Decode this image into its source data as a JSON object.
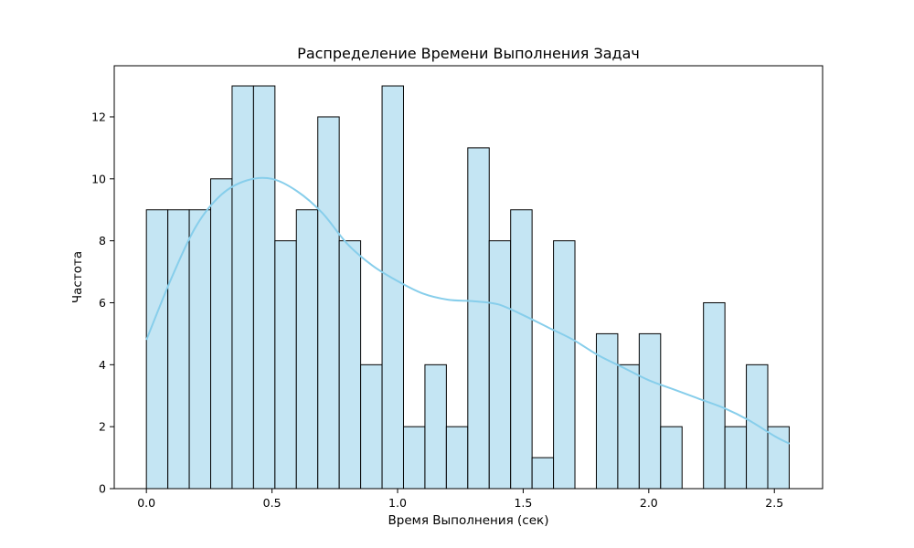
{
  "chart_data": {
    "type": "bar",
    "title": "Распределение Времени Выполнения Задач",
    "xlabel": "Время Выполнения (сек)",
    "ylabel": "Частота",
    "xlim": [
      -0.128,
      2.692
    ],
    "ylim": [
      0,
      13.65
    ],
    "grid": false,
    "legend": "none",
    "x_ticks": [
      0.0,
      0.5,
      1.0,
      1.5,
      2.0,
      2.5
    ],
    "x_tick_labels": [
      "0.0",
      "0.5",
      "1.0",
      "1.5",
      "2.0",
      "2.5"
    ],
    "y_ticks": [
      0,
      2,
      4,
      6,
      8,
      10,
      12
    ],
    "y_tick_labels": [
      "0",
      "2",
      "4",
      "6",
      "8",
      "10",
      "12"
    ],
    "bin_start": 0.0,
    "bin_width": 0.0853,
    "counts": [
      9,
      9,
      9,
      10,
      13,
      13,
      8,
      9,
      12,
      8,
      4,
      13,
      2,
      4,
      2,
      11,
      8,
      9,
      1,
      8,
      0,
      5,
      4,
      5,
      2,
      0,
      6,
      2,
      4,
      2
    ],
    "kde": {
      "x": [
        0.0,
        0.1,
        0.2,
        0.3,
        0.4,
        0.5,
        0.6,
        0.7,
        0.8,
        0.9,
        1.0,
        1.1,
        1.2,
        1.3,
        1.4,
        1.5,
        1.6,
        1.7,
        1.8,
        1.9,
        2.0,
        2.1,
        2.2,
        2.3,
        2.4,
        2.5,
        2.56
      ],
      "y": [
        4.8,
        6.8,
        8.5,
        9.5,
        9.95,
        10.0,
        9.6,
        8.9,
        7.9,
        7.2,
        6.7,
        6.3,
        6.1,
        6.05,
        5.95,
        5.6,
        5.2,
        4.8,
        4.3,
        3.9,
        3.5,
        3.2,
        2.9,
        2.6,
        2.2,
        1.7,
        1.45
      ]
    },
    "colors": {
      "bar_fill": "#c4e5f3",
      "bar_edge": "#000000",
      "kde_line": "#87ceeb"
    }
  }
}
